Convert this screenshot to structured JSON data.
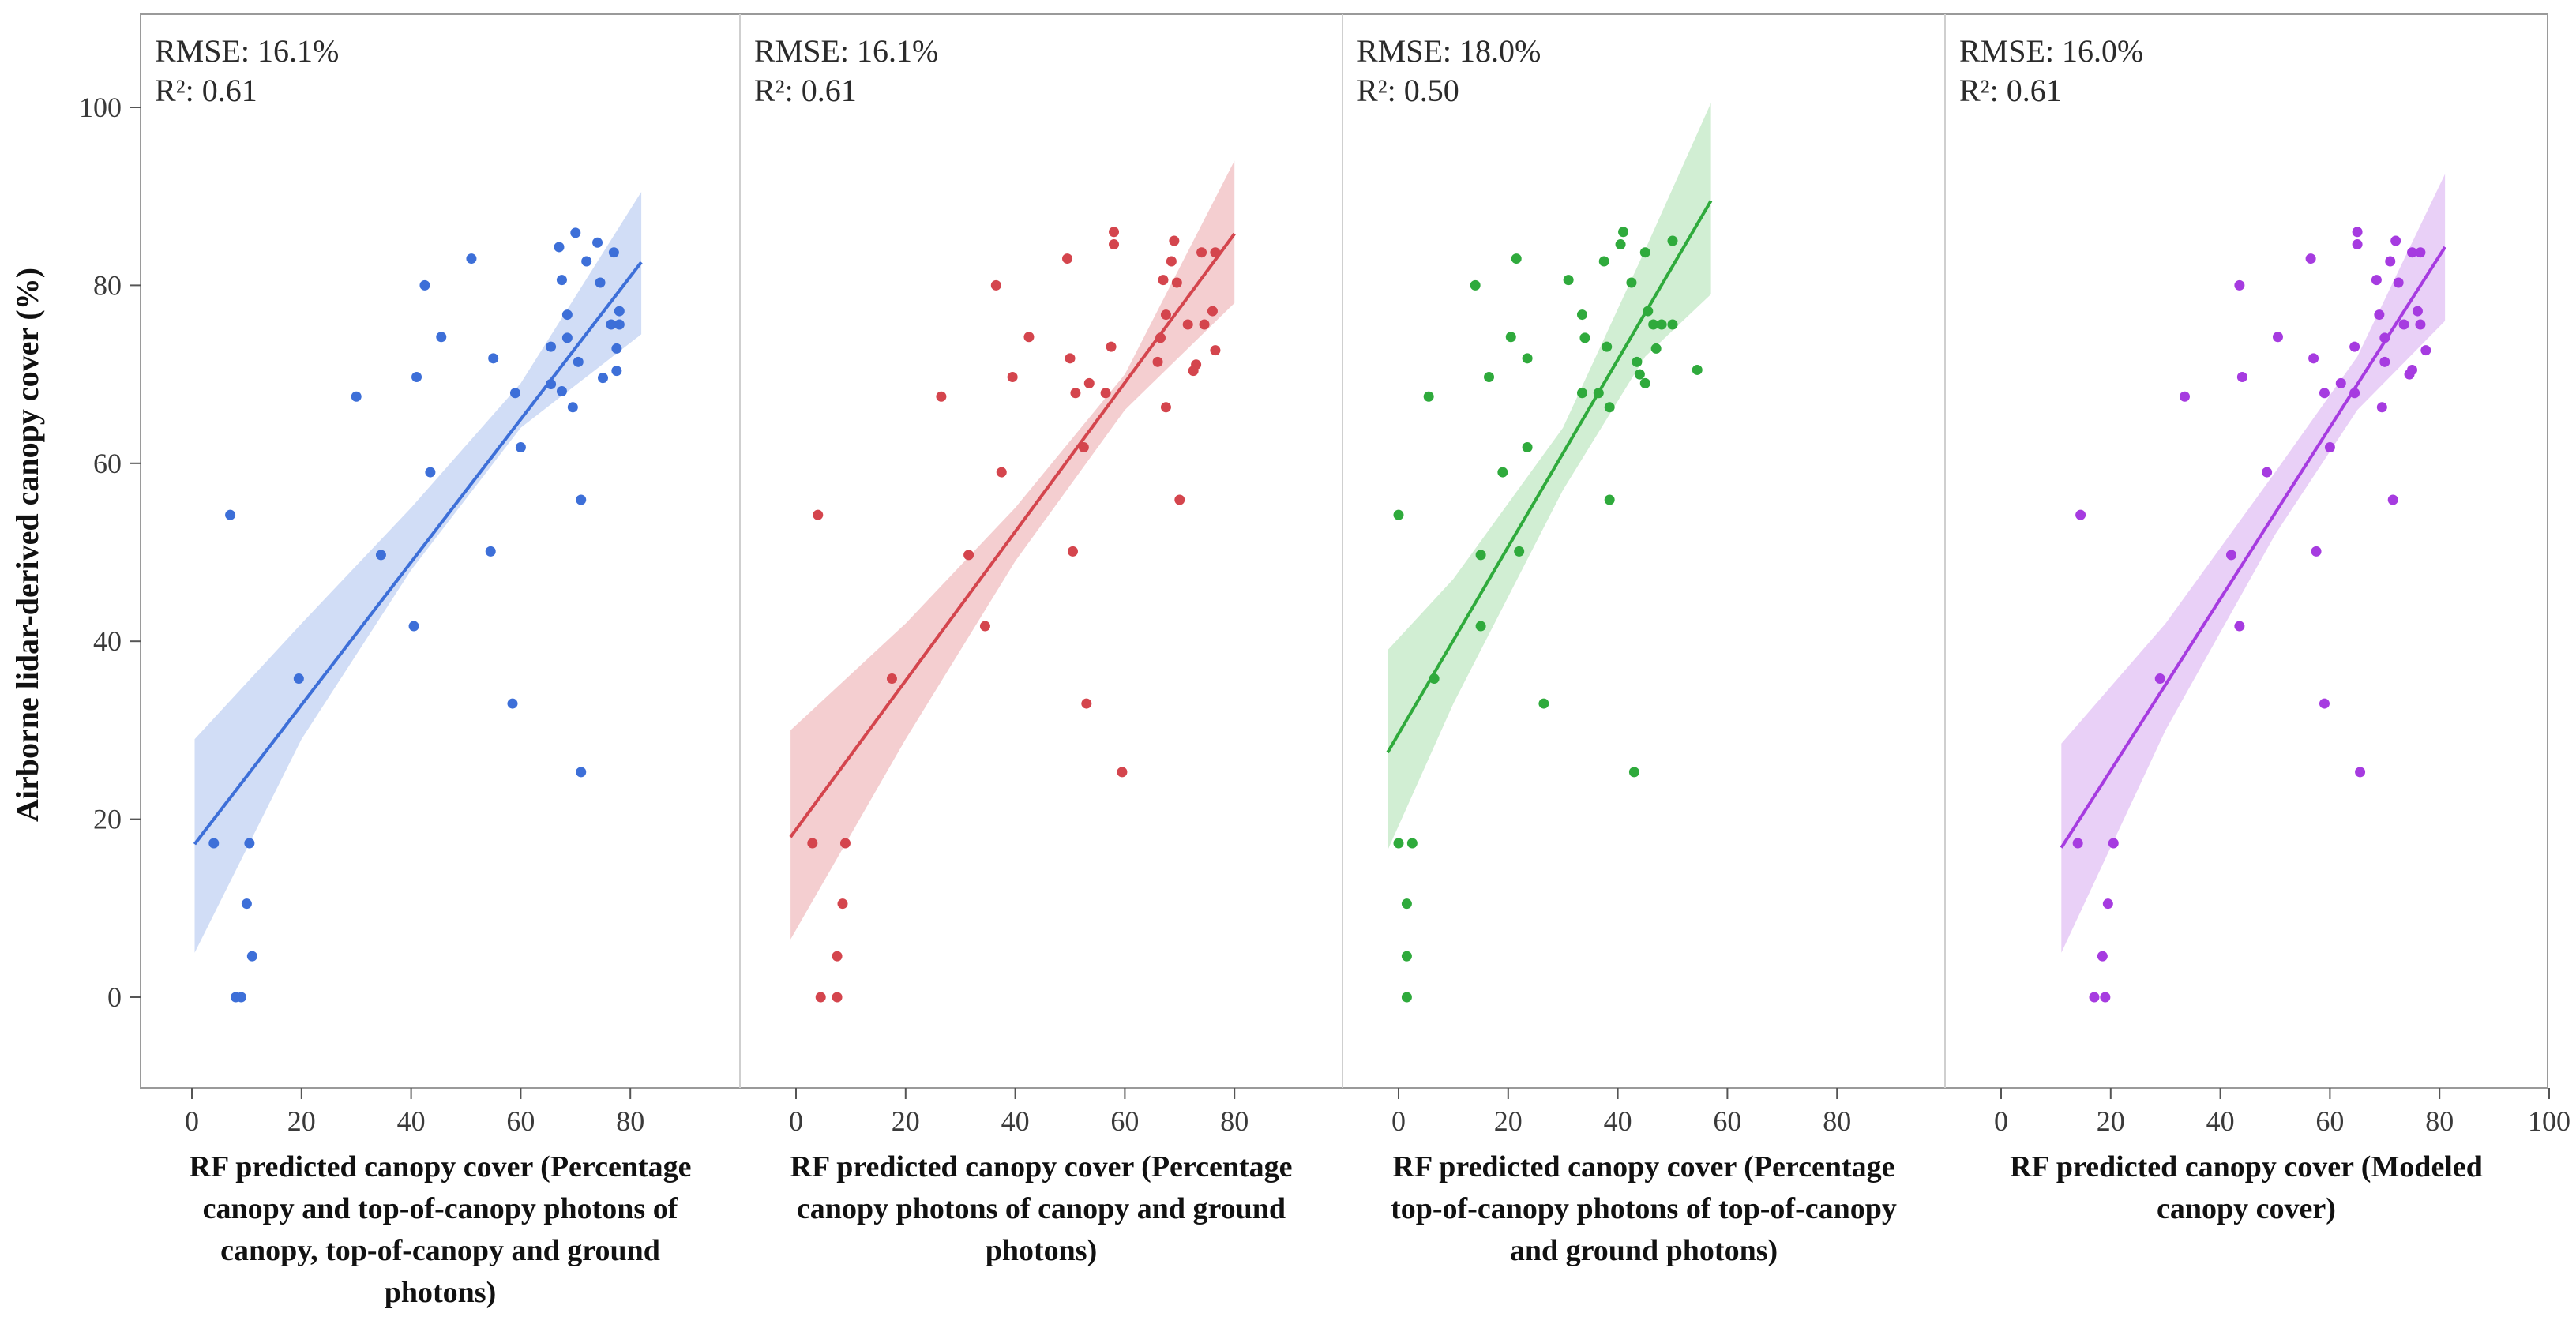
{
  "chart_data": {
    "type": "scatter",
    "layout": "four panels sharing the y axis",
    "ylabel": "Airborne lidar-derived canopy cover (%)",
    "ylim": [
      -10,
      105
    ],
    "yticks": [
      0,
      20,
      40,
      60,
      80,
      100
    ],
    "grid": false,
    "panels": [
      {
        "name": "Percentage canopy and top-of-canopy photons",
        "color": "#3d6fd8",
        "band_color": "#c9d7f5",
        "rmse_text": "RMSE: 16.1%",
        "r2_text": "R²: 0.61",
        "xlabel": [
          "RF predicted canopy cover (Percentage",
          "canopy and top-of-canopy photons of",
          "canopy, top-of-canopy and ground",
          "photons)"
        ],
        "xlim": [
          -10,
          100
        ],
        "xticks": [
          0,
          20,
          40,
          60,
          80
        ],
        "fit": {
          "x0": 0.5,
          "y0": 17.2,
          "x1": 82,
          "y1": 82.6
        },
        "band": {
          "x": [
            0.5,
            20,
            40,
            60,
            82
          ],
          "lower": [
            5,
            29,
            48,
            64,
            74.5
          ],
          "upper": [
            29,
            42,
            55,
            69,
            90.5
          ]
        },
        "points": [
          [
            4,
            17.3
          ],
          [
            10.5,
            17.3
          ],
          [
            10,
            10.5
          ],
          [
            11,
            4.6
          ],
          [
            8,
            0
          ],
          [
            9,
            0
          ],
          [
            7,
            54.2
          ],
          [
            19.5,
            35.8
          ],
          [
            30,
            67.5
          ],
          [
            34.5,
            49.7
          ],
          [
            40.5,
            41.7
          ],
          [
            41,
            69.7
          ],
          [
            42.5,
            80
          ],
          [
            43.5,
            59
          ],
          [
            45.5,
            74.2
          ],
          [
            51,
            83
          ],
          [
            54.5,
            50.1
          ],
          [
            55,
            71.8
          ],
          [
            58.5,
            33
          ],
          [
            59,
            67.9
          ],
          [
            60,
            61.8
          ],
          [
            65.5,
            73.1
          ],
          [
            65.5,
            68.9
          ],
          [
            67,
            84.3
          ],
          [
            67.5,
            68.1
          ],
          [
            67.5,
            80.6
          ],
          [
            68.5,
            76.7
          ],
          [
            68.5,
            74.1
          ],
          [
            69.5,
            66.3
          ],
          [
            70,
            85.9
          ],
          [
            70.5,
            71.4
          ],
          [
            71,
            25.3
          ],
          [
            71,
            55.9
          ],
          [
            72,
            82.7
          ],
          [
            74,
            84.8
          ],
          [
            74.5,
            80.3
          ],
          [
            75,
            69.6
          ],
          [
            76.5,
            75.6
          ],
          [
            77,
            83.7
          ],
          [
            77.5,
            70.4
          ],
          [
            77.5,
            72.9
          ],
          [
            78,
            77.1
          ],
          [
            78,
            75.6
          ]
        ]
      },
      {
        "name": "Percentage canopy photons",
        "color": "#d4454d",
        "band_color": "#f2c6c8",
        "rmse_text": "RMSE: 16.1%",
        "r2_text": "R²: 0.61",
        "xlabel": [
          "RF predicted canopy cover (Percentage",
          "canopy photons of canopy and ground",
          "photons)"
        ],
        "xlim": [
          -10,
          100
        ],
        "xticks": [
          0,
          20,
          40,
          60,
          80
        ],
        "fit": {
          "x0": -1,
          "y0": 18,
          "x1": 80,
          "y1": 85.8
        },
        "band": {
          "x": [
            -1,
            20,
            40,
            60,
            80
          ],
          "lower": [
            6.5,
            29,
            49,
            66,
            78
          ],
          "upper": [
            30,
            42,
            55,
            70,
            94
          ]
        },
        "points": [
          [
            3,
            17.3
          ],
          [
            9,
            17.3
          ],
          [
            8.5,
            10.5
          ],
          [
            7.5,
            4.6
          ],
          [
            4.5,
            0
          ],
          [
            7.5,
            0
          ],
          [
            4,
            54.2
          ],
          [
            17.5,
            35.8
          ],
          [
            26.5,
            67.5
          ],
          [
            31.5,
            49.7
          ],
          [
            34.5,
            41.7
          ],
          [
            39.5,
            69.7
          ],
          [
            36.5,
            80
          ],
          [
            37.5,
            59
          ],
          [
            42.5,
            74.2
          ],
          [
            49.5,
            83
          ],
          [
            50.5,
            50.1
          ],
          [
            50,
            71.8
          ],
          [
            53,
            33
          ],
          [
            51,
            67.9
          ],
          [
            52.5,
            61.8
          ],
          [
            53.5,
            69
          ],
          [
            56.5,
            67.9
          ],
          [
            57.5,
            73.1
          ],
          [
            58,
            84.6
          ],
          [
            58,
            86
          ],
          [
            59.5,
            25.3
          ],
          [
            66,
            71.4
          ],
          [
            66.5,
            74.1
          ],
          [
            67,
            80.6
          ],
          [
            67.5,
            76.7
          ],
          [
            67.5,
            66.3
          ],
          [
            68.5,
            82.7
          ],
          [
            69,
            85
          ],
          [
            69.5,
            80.3
          ],
          [
            70,
            55.9
          ],
          [
            71.5,
            75.6
          ],
          [
            72.5,
            70.4
          ],
          [
            73,
            71.1
          ],
          [
            74,
            83.7
          ],
          [
            74.5,
            75.6
          ],
          [
            76,
            77.1
          ],
          [
            76.5,
            83.7
          ],
          [
            76.5,
            72.7
          ]
        ]
      },
      {
        "name": "Percentage top-of-canopy photons",
        "color": "#2faa3c",
        "band_color": "#c9ebcb",
        "rmse_text": "RMSE: 18.0%",
        "r2_text": "R²: 0.50",
        "xlabel": [
          "RF predicted canopy cover (Percentage",
          "top-of-canopy photons of top-of-canopy",
          "and ground photons)"
        ],
        "xlim": [
          -10,
          100
        ],
        "xticks": [
          0,
          20,
          40,
          60,
          80
        ],
        "fit": {
          "x0": -2,
          "y0": 27.5,
          "x1": 57,
          "y1": 89.5
        },
        "band": {
          "x": [
            -2,
            10,
            30,
            45,
            57
          ],
          "lower": [
            16.5,
            33,
            57,
            72,
            79
          ],
          "upper": [
            39,
            47,
            64,
            84,
            100.5
          ]
        },
        "points": [
          [
            0,
            17.3
          ],
          [
            2.5,
            17.3
          ],
          [
            1.5,
            10.5
          ],
          [
            1.5,
            4.6
          ],
          [
            1.5,
            0
          ],
          [
            0,
            54.2
          ],
          [
            5.5,
            67.5
          ],
          [
            6.5,
            35.8
          ],
          [
            14,
            80
          ],
          [
            15,
            49.7
          ],
          [
            15,
            41.7
          ],
          [
            16.5,
            69.7
          ],
          [
            19,
            59
          ],
          [
            20.5,
            74.2
          ],
          [
            21.5,
            83
          ],
          [
            22,
            50.1
          ],
          [
            23.5,
            71.8
          ],
          [
            23.5,
            61.8
          ],
          [
            26.5,
            33
          ],
          [
            31,
            80.6
          ],
          [
            33.5,
            67.9
          ],
          [
            33.5,
            76.7
          ],
          [
            34,
            74.1
          ],
          [
            36.5,
            67.9
          ],
          [
            37.5,
            82.7
          ],
          [
            38,
            73.1
          ],
          [
            38.5,
            66.3
          ],
          [
            38.5,
            55.9
          ],
          [
            40.5,
            84.6
          ],
          [
            41,
            86
          ],
          [
            42.5,
            80.3
          ],
          [
            43,
            25.3
          ],
          [
            43.5,
            71.4
          ],
          [
            44,
            70
          ],
          [
            45,
            69
          ],
          [
            45,
            83.7
          ],
          [
            45.5,
            77.1
          ],
          [
            46.5,
            75.6
          ],
          [
            47,
            72.9
          ],
          [
            48,
            75.6
          ],
          [
            50,
            75.6
          ],
          [
            50,
            85
          ],
          [
            54.5,
            70.5
          ]
        ]
      },
      {
        "name": "Modeled canopy cover",
        "color": "#a63be0",
        "band_color": "#e5c8f6",
        "rmse_text": "RMSE: 16.0%",
        "r2_text": "R²: 0.61",
        "xlabel": [
          "RF predicted canopy cover (Modeled",
          "canopy cover)"
        ],
        "xlim": [
          -10,
          100
        ],
        "xticks": [
          0,
          20,
          40,
          60,
          80,
          100
        ],
        "fit": {
          "x0": 11,
          "y0": 16.8,
          "x1": 81,
          "y1": 84.3
        },
        "band": {
          "x": [
            11,
            30,
            50,
            65,
            81
          ],
          "lower": [
            5,
            30,
            52,
            66,
            76
          ],
          "upper": [
            28.5,
            42,
            59,
            72,
            92.5
          ]
        },
        "points": [
          [
            14,
            17.3
          ],
          [
            20.5,
            17.3
          ],
          [
            19.5,
            10.5
          ],
          [
            18.5,
            4.6
          ],
          [
            17,
            0
          ],
          [
            19,
            0
          ],
          [
            14.5,
            54.2
          ],
          [
            29,
            35.8
          ],
          [
            33.5,
            67.5
          ],
          [
            42,
            49.7
          ],
          [
            43.5,
            41.7
          ],
          [
            43.5,
            80
          ],
          [
            44,
            69.7
          ],
          [
            48.5,
            59
          ],
          [
            50.5,
            74.2
          ],
          [
            56.5,
            83
          ],
          [
            57.5,
            50.1
          ],
          [
            57,
            71.8
          ],
          [
            59,
            33
          ],
          [
            59,
            67.9
          ],
          [
            60,
            61.8
          ],
          [
            62,
            69
          ],
          [
            64.5,
            67.9
          ],
          [
            64.5,
            73.1
          ],
          [
            65,
            84.6
          ],
          [
            65,
            86
          ],
          [
            65.5,
            25.3
          ],
          [
            68.5,
            80.6
          ],
          [
            69,
            76.7
          ],
          [
            69.5,
            66.3
          ],
          [
            70,
            74.1
          ],
          [
            70,
            71.4
          ],
          [
            71,
            82.7
          ],
          [
            71.5,
            55.9
          ],
          [
            72,
            85
          ],
          [
            72.5,
            80.3
          ],
          [
            73.5,
            75.6
          ],
          [
            74.5,
            70
          ],
          [
            75,
            83.7
          ],
          [
            75,
            70.5
          ],
          [
            76,
            77.1
          ],
          [
            76.5,
            83.7
          ],
          [
            76.5,
            75.6
          ],
          [
            77.5,
            72.7
          ]
        ]
      }
    ]
  }
}
